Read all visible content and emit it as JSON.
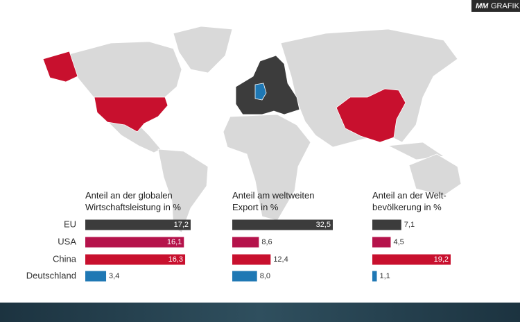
{
  "logo": {
    "brand": "MM",
    "label": "GRAFIK"
  },
  "chart_data": [
    {
      "type": "bar",
      "orientation": "horizontal",
      "title": "Anteil an der globalen\nWirtschaftsleistung in %",
      "categories": [
        "EU",
        "USA",
        "China",
        "Deutschland"
      ],
      "values": [
        17.2,
        16.1,
        16.3,
        3.4
      ],
      "value_labels": [
        "17,2",
        "16,1",
        "16,3",
        "3,4"
      ],
      "colors": [
        "#3c3c3c",
        "#b5134b",
        "#c8102e",
        "#1f78b4"
      ]
    },
    {
      "type": "bar",
      "orientation": "horizontal",
      "title": "Anteil am weltweiten\nExport in %",
      "values": [
        32.5,
        8.6,
        12.4,
        8.0
      ],
      "value_labels": [
        "32,5",
        "8,6",
        "12,4",
        "8,0"
      ],
      "colors": [
        "#3c3c3c",
        "#b5134b",
        "#c8102e",
        "#1f78b4"
      ]
    },
    {
      "type": "bar",
      "orientation": "horizontal",
      "title": "Anteil an der Welt-\nbevölkerung in %",
      "values": [
        7.1,
        4.5,
        19.2,
        1.1
      ],
      "value_labels": [
        "7,1",
        "4,5",
        "19,2",
        "1,1"
      ],
      "colors": [
        "#3c3c3c",
        "#b5134b",
        "#c8102e",
        "#1f78b4"
      ]
    }
  ]
}
